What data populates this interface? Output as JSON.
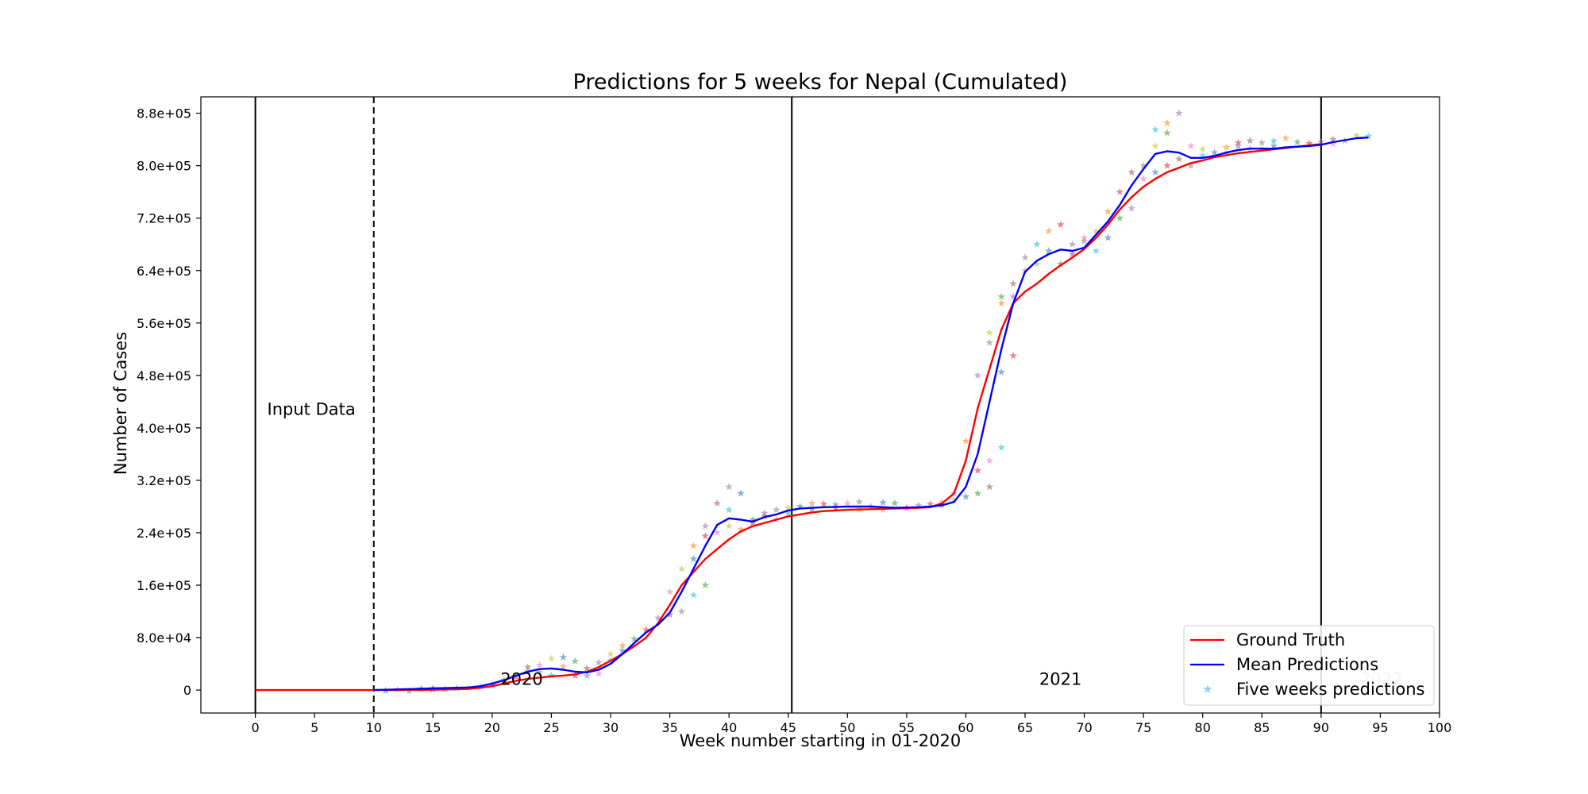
{
  "chart_data": {
    "type": "line",
    "title": "Predictions for 5 weeks for Nepal (Cumulated)",
    "xlabel": "Week number starting in 01-2020",
    "ylabel": "Number of Cases",
    "xlim": [
      -4.6,
      100
    ],
    "ylim": [
      -35000,
      905000
    ],
    "x_ticks": [
      0,
      5,
      10,
      15,
      20,
      25,
      30,
      35,
      40,
      45,
      50,
      55,
      60,
      65,
      70,
      75,
      80,
      85,
      90,
      95,
      100
    ],
    "x_tick_labels": [
      "0",
      "5",
      "10",
      "15",
      "20",
      "25",
      "30",
      "35",
      "40",
      "45",
      "50",
      "55",
      "60",
      "65",
      "70",
      "75",
      "80",
      "85",
      "90",
      "95",
      "100"
    ],
    "y_ticks": [
      0,
      80000,
      160000,
      240000,
      320000,
      400000,
      480000,
      560000,
      640000,
      720000,
      800000,
      880000
    ],
    "y_tick_labels": [
      "0",
      "8.0e+04",
      "1.6e+05",
      "2.4e+05",
      "3.2e+05",
      "4.0e+05",
      "4.8e+05",
      "5.6e+05",
      "6.4e+05",
      "7.2e+05",
      "8.0e+05",
      "8.8e+05"
    ],
    "grid": false,
    "legend_position": "lower-right",
    "vlines": [
      {
        "x": 0,
        "style": "solid"
      },
      {
        "x": 10,
        "style": "dashed"
      },
      {
        "x": 45.3,
        "style": "solid"
      },
      {
        "x": 90,
        "style": "solid"
      }
    ],
    "annotations": [
      {
        "text": "Input Data",
        "x": 1,
        "y": 420000,
        "color": "#000000"
      },
      {
        "text": "2020",
        "x": 20.7,
        "y": 8000,
        "color": "#000000"
      },
      {
        "text": "2021",
        "x": 66.2,
        "y": 8000,
        "color": "#000000"
      },
      {
        "text": "2022",
        "x": 93.3,
        "y": 8000,
        "color": "#bbbbbb"
      }
    ],
    "series": [
      {
        "name": "Ground Truth",
        "color": "#ff0000",
        "x": [
          0,
          1,
          2,
          3,
          4,
          5,
          6,
          7,
          8,
          9,
          10,
          11,
          12,
          13,
          14,
          15,
          16,
          17,
          18,
          19,
          20,
          21,
          22,
          23,
          24,
          25,
          26,
          27,
          28,
          29,
          30,
          31,
          32,
          33,
          34,
          35,
          36,
          37,
          38,
          39,
          40,
          41,
          42,
          43,
          44,
          45,
          46,
          47,
          48,
          49,
          50,
          51,
          52,
          53,
          54,
          55,
          56,
          57,
          58,
          59,
          60,
          61,
          62,
          63,
          64,
          65,
          66,
          67,
          68,
          69,
          70,
          71,
          72,
          73,
          74,
          75,
          76,
          77,
          78,
          79,
          80,
          81,
          82,
          83,
          84,
          85,
          86,
          87,
          88,
          89,
          90
        ],
        "y": [
          0,
          0,
          0,
          0,
          0,
          0,
          0,
          0,
          0,
          0,
          0,
          0,
          100,
          200,
          300,
          500,
          800,
          1200,
          2000,
          3500,
          6000,
          10000,
          14000,
          17000,
          19000,
          21000,
          22000,
          24000,
          28000,
          35000,
          45000,
          55000,
          67000,
          80000,
          102000,
          130000,
          160000,
          180000,
          200000,
          215000,
          230000,
          242000,
          250000,
          255000,
          260000,
          265000,
          268000,
          271000,
          273000,
          274000,
          275000,
          275500,
          276000,
          276500,
          277000,
          277500,
          278000,
          279000,
          285000,
          300000,
          350000,
          430000,
          490000,
          550000,
          590000,
          608000,
          620000,
          635000,
          648000,
          660000,
          673000,
          690000,
          710000,
          733000,
          752000,
          768000,
          780000,
          790000,
          797000,
          804000,
          808000,
          813000,
          816000,
          819000,
          821000,
          823000,
          825000,
          827000,
          829000,
          831000,
          833000
        ]
      },
      {
        "name": "Mean Predictions",
        "color": "#0000ff",
        "x": [
          10,
          11,
          12,
          13,
          14,
          15,
          16,
          17,
          18,
          19,
          20,
          21,
          22,
          23,
          24,
          25,
          26,
          27,
          28,
          29,
          30,
          31,
          32,
          33,
          34,
          35,
          36,
          37,
          38,
          39,
          40,
          41,
          42,
          43,
          44,
          45,
          46,
          47,
          48,
          49,
          50,
          51,
          52,
          53,
          54,
          55,
          56,
          57,
          58,
          59,
          60,
          61,
          62,
          63,
          64,
          65,
          66,
          67,
          68,
          69,
          70,
          71,
          72,
          73,
          74,
          75,
          76,
          77,
          78,
          79,
          80,
          81,
          82,
          83,
          84,
          85,
          86,
          87,
          88,
          89,
          90,
          91,
          92,
          93,
          94
        ],
        "y": [
          0,
          500,
          1000,
          1500,
          2000,
          2500,
          3000,
          3500,
          4000,
          6000,
          10000,
          15000,
          22000,
          28000,
          32000,
          33000,
          31000,
          28000,
          27000,
          31000,
          40000,
          55000,
          72000,
          88000,
          100000,
          118000,
          150000,
          185000,
          220000,
          252000,
          262000,
          260000,
          257000,
          264000,
          268000,
          274000,
          277000,
          278000,
          279000,
          279500,
          280000,
          280000,
          280000,
          279000,
          278000,
          278500,
          279000,
          280000,
          282000,
          287000,
          310000,
          360000,
          440000,
          520000,
          590000,
          638000,
          655000,
          665000,
          672000,
          670000,
          675000,
          695000,
          715000,
          740000,
          770000,
          795000,
          818000,
          822000,
          820000,
          812000,
          812000,
          815000,
          820000,
          824000,
          826000,
          826000,
          826000,
          828000,
          829000,
          830000,
          832000,
          836000,
          839000,
          842000,
          843000
        ]
      },
      {
        "name": "Five weeks predictions",
        "color": "#87ceeb",
        "opacity": 0.55,
        "palette": [
          "#1f77b4",
          "#ff7f0e",
          "#2ca02c",
          "#d62728",
          "#9467bd",
          "#8c564b",
          "#e377c2",
          "#7f7f7f",
          "#bcbd22",
          "#17becf"
        ],
        "points": [
          [
            11,
            -1000
          ],
          [
            12,
            500
          ],
          [
            13,
            -1500
          ],
          [
            14,
            2000
          ],
          [
            15,
            1000
          ],
          [
            15,
            2500
          ],
          [
            16,
            1500
          ],
          [
            17,
            3000
          ],
          [
            18,
            3500
          ],
          [
            19,
            5000
          ],
          [
            20,
            8000
          ],
          [
            21,
            12000
          ],
          [
            21,
            15000
          ],
          [
            22,
            20000
          ],
          [
            23,
            28000
          ],
          [
            23,
            35000
          ],
          [
            24,
            38000
          ],
          [
            24,
            27000
          ],
          [
            25,
            48000
          ],
          [
            25,
            22000
          ],
          [
            26,
            50000
          ],
          [
            26,
            36000
          ],
          [
            27,
            44000
          ],
          [
            27,
            22000
          ],
          [
            28,
            22000
          ],
          [
            28,
            33000
          ],
          [
            29,
            25000
          ],
          [
            29,
            42000
          ],
          [
            30,
            55000
          ],
          [
            30,
            45000
          ],
          [
            31,
            60000
          ],
          [
            31,
            68000
          ],
          [
            32,
            78000
          ],
          [
            33,
            92000
          ],
          [
            34,
            110000
          ],
          [
            35,
            115000
          ],
          [
            35,
            150000
          ],
          [
            36,
            120000
          ],
          [
            36,
            185000
          ],
          [
            37,
            145000
          ],
          [
            37,
            200000
          ],
          [
            37,
            220000
          ],
          [
            38,
            160000
          ],
          [
            38,
            235000
          ],
          [
            38,
            250000
          ],
          [
            39,
            285000
          ],
          [
            39,
            240000
          ],
          [
            40,
            310000
          ],
          [
            40,
            250000
          ],
          [
            40,
            275000
          ],
          [
            41,
            300000
          ],
          [
            41,
            245000
          ],
          [
            42,
            260000
          ],
          [
            42,
            255000
          ],
          [
            43,
            270000
          ],
          [
            43,
            265000
          ],
          [
            44,
            260000
          ],
          [
            44,
            275000
          ],
          [
            45,
            278000
          ],
          [
            45,
            270000
          ],
          [
            46,
            280000
          ],
          [
            47,
            285000
          ],
          [
            47,
            276000
          ],
          [
            48,
            284000
          ],
          [
            49,
            283000
          ],
          [
            49,
            278000
          ],
          [
            50,
            285000
          ],
          [
            51,
            287000
          ],
          [
            51,
            276000
          ],
          [
            52,
            280000
          ],
          [
            53,
            286000
          ],
          [
            53,
            275000
          ],
          [
            54,
            285000
          ],
          [
            55,
            278000
          ],
          [
            56,
            282000
          ],
          [
            57,
            284000
          ],
          [
            58,
            287000
          ],
          [
            58,
            282000
          ],
          [
            59,
            290000
          ],
          [
            59,
            300000
          ],
          [
            60,
            295000
          ],
          [
            60,
            380000
          ],
          [
            61,
            300000
          ],
          [
            61,
            335000
          ],
          [
            61,
            480000
          ],
          [
            62,
            310000
          ],
          [
            62,
            350000
          ],
          [
            62,
            530000
          ],
          [
            62,
            545000
          ],
          [
            63,
            370000
          ],
          [
            63,
            485000
          ],
          [
            63,
            590000
          ],
          [
            63,
            600000
          ],
          [
            64,
            510000
          ],
          [
            64,
            600000
          ],
          [
            64,
            620000
          ],
          [
            65,
            640000
          ],
          [
            65,
            660000
          ],
          [
            66,
            650000
          ],
          [
            66,
            680000
          ],
          [
            67,
            670000
          ],
          [
            67,
            700000
          ],
          [
            68,
            650000
          ],
          [
            68,
            710000
          ],
          [
            69,
            680000
          ],
          [
            69,
            665000
          ],
          [
            70,
            690000
          ],
          [
            70,
            685000
          ],
          [
            71,
            700000
          ],
          [
            71,
            670000
          ],
          [
            72,
            690000
          ],
          [
            72,
            730000
          ],
          [
            73,
            720000
          ],
          [
            73,
            760000
          ],
          [
            74,
            735000
          ],
          [
            74,
            790000
          ],
          [
            75,
            780000
          ],
          [
            75,
            800000
          ],
          [
            76,
            830000
          ],
          [
            76,
            855000
          ],
          [
            76,
            790000
          ],
          [
            77,
            865000
          ],
          [
            77,
            850000
          ],
          [
            77,
            800000
          ],
          [
            78,
            880000
          ],
          [
            78,
            810000
          ],
          [
            79,
            830000
          ],
          [
            79,
            800000
          ],
          [
            80,
            825000
          ],
          [
            80,
            815000
          ],
          [
            81,
            820000
          ],
          [
            82,
            828000
          ],
          [
            82,
            818000
          ],
          [
            83,
            835000
          ],
          [
            83,
            830000
          ],
          [
            84,
            838000
          ],
          [
            84,
            826000
          ],
          [
            85,
            835000
          ],
          [
            85,
            826000
          ],
          [
            86,
            838000
          ],
          [
            86,
            830000
          ],
          [
            87,
            842000
          ],
          [
            88,
            836000
          ],
          [
            89,
            834000
          ],
          [
            90,
            836000
          ],
          [
            91,
            840000
          ],
          [
            91,
            833000
          ],
          [
            92,
            838000
          ],
          [
            93,
            846000
          ],
          [
            94,
            845000
          ]
        ]
      }
    ]
  }
}
